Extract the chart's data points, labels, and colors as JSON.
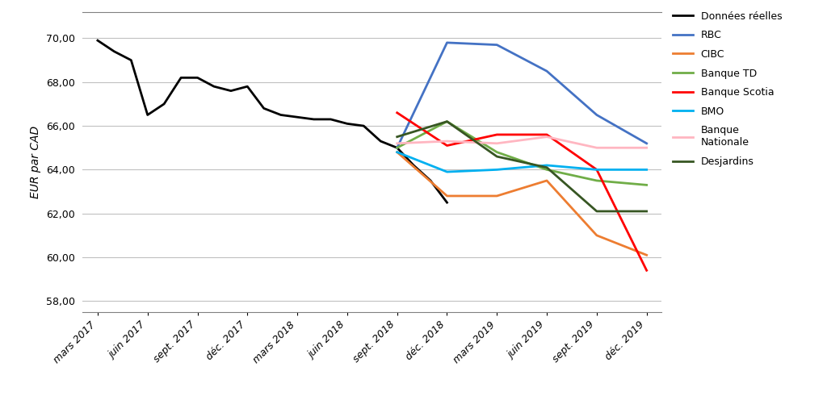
{
  "ylabel": "EUR par CAD",
  "x_labels": [
    "mars 2017",
    "juin 2017",
    "sept. 2017",
    "déc. 2017",
    "mars 2018",
    "juin 2018",
    "sept. 2018",
    "déc. 2018",
    "mars 2019",
    "juin 2019",
    "sept. 2019",
    "déc. 2019"
  ],
  "ylim": [
    57.5,
    71.2
  ],
  "yticks": [
    58.0,
    60.0,
    62.0,
    64.0,
    66.0,
    68.0,
    70.0
  ],
  "series": {
    "Données réelles": {
      "color": "#000000",
      "linewidth": 2.0,
      "x_indices": [
        0,
        0.33,
        0.67,
        1,
        1.33,
        1.67,
        2,
        2.33,
        2.67,
        3,
        3.33,
        3.67,
        4,
        4.33,
        4.67,
        5,
        5.33,
        5.67,
        6,
        6.33,
        6.67,
        7
      ],
      "values": [
        69.9,
        69.4,
        69.0,
        66.5,
        67.0,
        68.2,
        68.2,
        67.8,
        67.6,
        67.8,
        66.8,
        66.5,
        66.4,
        66.3,
        66.3,
        66.1,
        66.0,
        65.3,
        65.0,
        64.2,
        63.5,
        62.5
      ]
    },
    "RBC": {
      "color": "#4472C4",
      "linewidth": 2.0,
      "x_indices": [
        6,
        7,
        8,
        9,
        10,
        11
      ],
      "values": [
        65.0,
        69.8,
        69.7,
        68.5,
        66.5,
        65.2
      ]
    },
    "CIBC": {
      "color": "#ED7D31",
      "linewidth": 2.0,
      "x_indices": [
        6,
        7,
        8,
        9,
        10,
        11
      ],
      "values": [
        64.8,
        62.8,
        62.8,
        63.5,
        61.0,
        60.1
      ]
    },
    "Banque TD": {
      "color": "#70AD47",
      "linewidth": 2.0,
      "x_indices": [
        6,
        7,
        8,
        9,
        10,
        11
      ],
      "values": [
        65.0,
        66.2,
        64.8,
        64.0,
        63.5,
        63.3
      ]
    },
    "Banque Scotia": {
      "color": "#FF0000",
      "linewidth": 2.0,
      "x_indices": [
        6,
        7,
        8,
        9,
        10,
        11
      ],
      "values": [
        66.6,
        65.1,
        65.6,
        65.6,
        64.0,
        59.4
      ]
    },
    "BMO": {
      "color": "#00B0F0",
      "linewidth": 2.0,
      "x_indices": [
        6,
        7,
        8,
        9,
        10,
        11
      ],
      "values": [
        64.8,
        63.9,
        64.0,
        64.2,
        64.0,
        64.0
      ]
    },
    "Banque Nationale": {
      "color": "#FFB6C1",
      "linewidth": 2.0,
      "x_indices": [
        6,
        7,
        8,
        9,
        10,
        11
      ],
      "values": [
        65.2,
        65.3,
        65.2,
        65.5,
        65.0,
        65.0
      ]
    },
    "Desjardins": {
      "color": "#375623",
      "linewidth": 2.0,
      "x_indices": [
        6,
        7,
        8,
        9,
        10,
        11
      ],
      "values": [
        65.5,
        66.2,
        64.6,
        64.1,
        62.1,
        62.1
      ]
    }
  },
  "legend_labels": [
    "Données réelles",
    "RBC",
    "CIBC",
    "Banque TD",
    "Banque Scotia",
    "BMO",
    "Banque\nNationale",
    "Desjardins"
  ],
  "background_color": "#FFFFFF",
  "grid_color": "#C0C0C0",
  "border_color": "#808080"
}
